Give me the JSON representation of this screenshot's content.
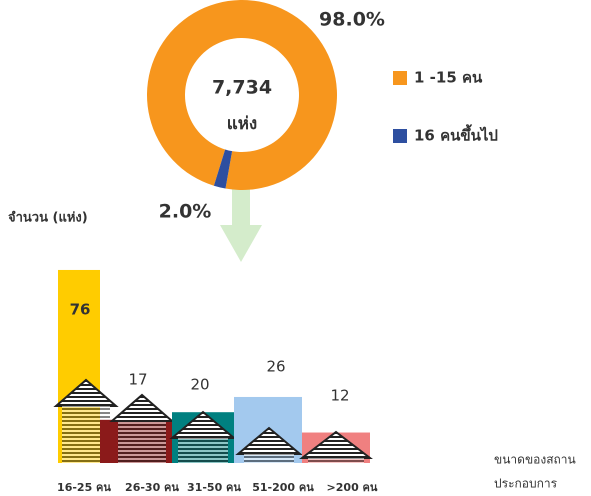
{
  "charts": [
    {
      "type": "donut",
      "center_value": "7,734",
      "center_unit": "แห่ง",
      "categories": [
        "1 -15 คน",
        "16 คนขึ้นไป"
      ],
      "values": [
        98.0,
        2.0
      ],
      "value_labels": [
        "98.0%",
        "2.0%"
      ],
      "colors": [
        "#f7961d",
        "#2e4fa0"
      ],
      "legend": "right"
    },
    {
      "type": "bar",
      "ylabel": "จำนวน (แห่ง)",
      "xlabel": [
        "ขนาดของสถาน",
        "ประกอบการ"
      ],
      "categories": [
        "16-25 คน",
        "26-30 คน",
        "31-50 คน",
        "51-200 คน",
        ">200 คน"
      ],
      "values": [
        76,
        17,
        20,
        26,
        12
      ],
      "colors": [
        "#ffcc00",
        "#8b1a1a",
        "#008080",
        "#a3c9ee",
        "#f08080"
      ]
    }
  ]
}
